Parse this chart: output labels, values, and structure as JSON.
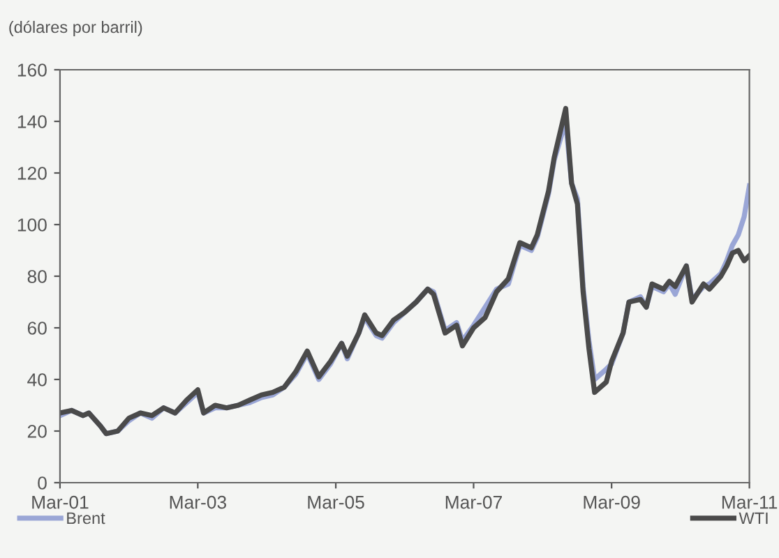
{
  "chart_data": {
    "type": "line",
    "ylabel": "(dólares por barril)",
    "x": [
      "2001-03",
      "2001-05",
      "2001-07",
      "2001-08",
      "2001-10",
      "2001-11",
      "2002-01",
      "2002-03",
      "2002-05",
      "2002-07",
      "2002-09",
      "2002-11",
      "2003-01",
      "2003-03",
      "2003-04",
      "2003-06",
      "2003-08",
      "2003-10",
      "2003-12",
      "2004-02",
      "2004-04",
      "2004-06",
      "2004-08",
      "2004-10",
      "2004-12",
      "2005-02",
      "2005-04",
      "2005-05",
      "2005-07",
      "2005-08",
      "2005-10",
      "2005-11",
      "2006-01",
      "2006-03",
      "2006-05",
      "2006-07",
      "2006-08",
      "2006-10",
      "2006-12",
      "2007-01",
      "2007-03",
      "2007-05",
      "2007-07",
      "2007-09",
      "2007-11",
      "2008-01",
      "2008-02",
      "2008-04",
      "2008-05",
      "2008-07",
      "2008-08",
      "2008-09",
      "2008-10",
      "2008-11",
      "2008-12",
      "2009-02",
      "2009-03",
      "2009-05",
      "2009-06",
      "2009-08",
      "2009-09",
      "2009-10",
      "2009-12",
      "2010-01",
      "2010-02",
      "2010-04",
      "2010-05",
      "2010-07",
      "2010-08",
      "2010-10",
      "2010-11",
      "2010-12",
      "2011-01",
      "2011-02",
      "2011-03"
    ],
    "series": [
      {
        "name": "Brent",
        "color": "#9aa6d6",
        "values": [
          26,
          28,
          26,
          27,
          22,
          19,
          20,
          24,
          27,
          25,
          29,
          27,
          31,
          35,
          27,
          29,
          29,
          30,
          31,
          33,
          34,
          37,
          42,
          50,
          40,
          46,
          54,
          48,
          58,
          64,
          57,
          56,
          62,
          66,
          70,
          75,
          74,
          59,
          62,
          55,
          61,
          68,
          75,
          77,
          92,
          90,
          95,
          112,
          125,
          140,
          116,
          110,
          76,
          55,
          40,
          44,
          46,
          58,
          70,
          72,
          68,
          76,
          74,
          77,
          73,
          84,
          71,
          76,
          77,
          81,
          86,
          92,
          96,
          103,
          115
        ]
      },
      {
        "name": "WTI",
        "color": "#4a4a4a",
        "values": [
          27,
          28,
          26,
          27,
          22,
          19,
          20,
          25,
          27,
          26,
          29,
          27,
          32,
          36,
          27,
          30,
          29,
          30,
          32,
          34,
          35,
          37,
          43,
          51,
          41,
          47,
          54,
          49,
          58,
          65,
          58,
          57,
          63,
          66,
          70,
          75,
          73,
          58,
          61,
          53,
          60,
          64,
          74,
          79,
          93,
          91,
          96,
          113,
          126,
          145,
          116,
          108,
          74,
          52,
          35,
          39,
          47,
          58,
          70,
          71,
          68,
          77,
          75,
          78,
          76,
          84,
          70,
          77,
          75,
          80,
          84,
          89,
          90,
          86,
          88
        ]
      }
    ],
    "xlim": [
      "2001-03",
      "2011-03"
    ],
    "xticks": [
      {
        "value": "2001-03",
        "label": "Mar-01"
      },
      {
        "value": "2003-03",
        "label": "Mar-03"
      },
      {
        "value": "2005-03",
        "label": "Mar-05"
      },
      {
        "value": "2007-03",
        "label": "Mar-07"
      },
      {
        "value": "2009-03",
        "label": "Mar-09"
      },
      {
        "value": "2011-03",
        "label": "Mar-11"
      }
    ],
    "ylim": [
      0,
      160
    ],
    "yticks": [
      0,
      20,
      40,
      60,
      80,
      100,
      120,
      140,
      160
    ],
    "legend": "bottom"
  }
}
